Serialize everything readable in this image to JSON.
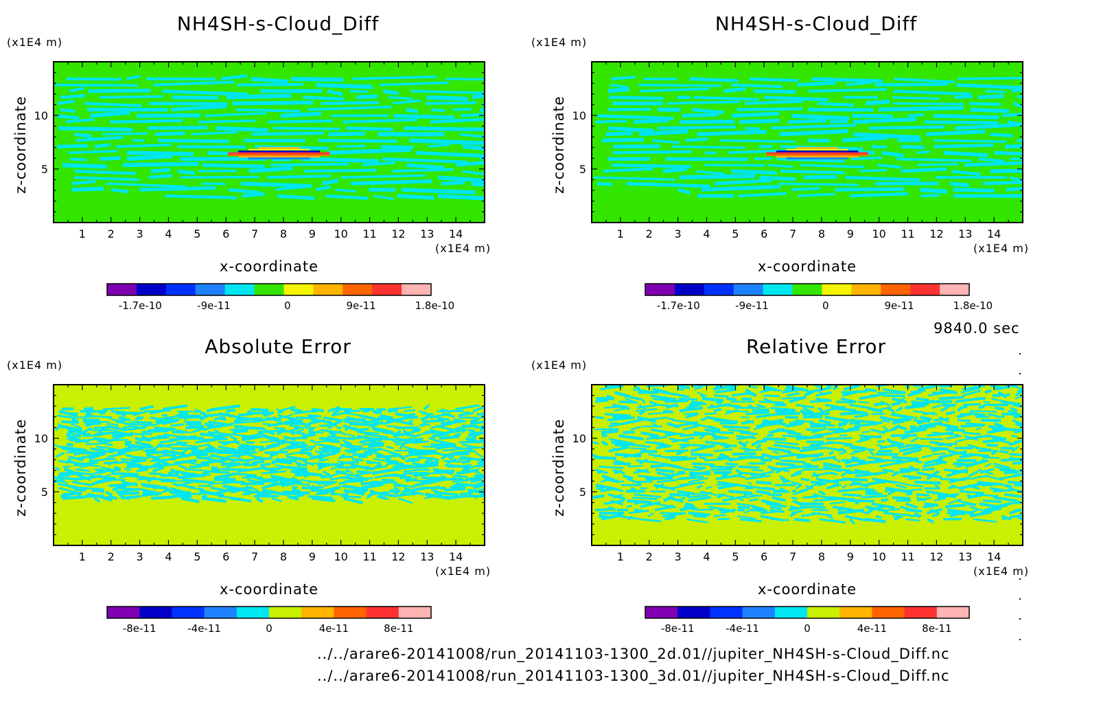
{
  "chart_data": [
    {
      "type": "heatmap",
      "title": "NH4SH-s-Cloud_Diff",
      "xlabel": "x-coordinate",
      "ylabel": "z-coordinate",
      "x_unit": "(x1E4 m)",
      "y_unit": "(x1E4 m)",
      "xlim": [
        0,
        15
      ],
      "ylim": [
        0,
        15
      ],
      "xticks": [
        1,
        2,
        3,
        4,
        5,
        6,
        7,
        8,
        9,
        10,
        11,
        12,
        13,
        14
      ],
      "yticks": [
        5,
        10
      ],
      "colorbar": {
        "colors": [
          "#7f00b2",
          "#0000c8",
          "#0032ff",
          "#1e82ff",
          "#00e6f0",
          "#32e600",
          "#f5f500",
          "#ffb400",
          "#ff6400",
          "#ff3232",
          "#ffb4b4"
        ],
        "labels": [
          "-1.7e-10",
          "-9e-11",
          "0",
          "9e-11",
          "1.8e-10"
        ]
      },
      "background": "#32e600",
      "pattern": "#00e6f0",
      "feature": {
        "x_range": [
          5.9,
          9.8
        ],
        "z_center": 6.4,
        "colors": [
          "#ffb400",
          "#f5f500",
          "#0000c8",
          "#ff3232",
          "#ff6400",
          "#ffb400",
          "#1e82ff"
        ]
      }
    },
    {
      "type": "heatmap",
      "title": "NH4SH-s-Cloud_Diff",
      "xlabel": "x-coordinate",
      "ylabel": "z-coordinate",
      "x_unit": "(x1E4 m)",
      "y_unit": "(x1E4 m)",
      "xlim": [
        0,
        15
      ],
      "ylim": [
        0,
        15
      ],
      "xticks": [
        1,
        2,
        3,
        4,
        5,
        6,
        7,
        8,
        9,
        10,
        11,
        12,
        13,
        14
      ],
      "yticks": [
        5,
        10
      ],
      "colorbar": {
        "colors": [
          "#7f00b2",
          "#0000c8",
          "#0032ff",
          "#1e82ff",
          "#00e6f0",
          "#32e600",
          "#f5f500",
          "#ffb400",
          "#ff6400",
          "#ff3232",
          "#ffb4b4"
        ],
        "labels": [
          "-1.7e-10",
          "-9e-11",
          "0",
          "9e-11",
          "1.8e-10"
        ]
      },
      "background": "#32e600",
      "pattern": "#00e6f0",
      "feature": {
        "x_range": [
          5.9,
          9.8
        ],
        "z_center": 6.4,
        "colors": [
          "#ffb400",
          "#f5f500",
          "#0000c8",
          "#ff3232",
          "#ff6400",
          "#ffb400",
          "#1e82ff"
        ]
      }
    },
    {
      "type": "heatmap",
      "title": "Absolute Error",
      "xlabel": "x-coordinate",
      "ylabel": "z-coordinate",
      "x_unit": "(x1E4 m)",
      "y_unit": "(x1E4 m)",
      "xlim": [
        0,
        15
      ],
      "ylim": [
        0,
        15
      ],
      "xticks": [
        1,
        2,
        3,
        4,
        5,
        6,
        7,
        8,
        9,
        10,
        11,
        12,
        13,
        14
      ],
      "yticks": [
        5,
        10
      ],
      "colorbar": {
        "colors": [
          "#7f00b2",
          "#0000c8",
          "#0032ff",
          "#1e82ff",
          "#00e6f0",
          "#c8f000",
          "#ffb400",
          "#ff6400",
          "#ff3232",
          "#ffb4b4"
        ],
        "labels": [
          "-8e-11",
          "-4e-11",
          "0",
          "4e-11",
          "8e-11"
        ]
      },
      "background": "#c8f000",
      "pattern": "#00e6f0"
    },
    {
      "type": "heatmap",
      "title": "Relative Error",
      "xlabel": "x-coordinate",
      "ylabel": "z-coordinate",
      "x_unit": "(x1E4 m)",
      "y_unit": "(x1E4 m)",
      "xlim": [
        0,
        15
      ],
      "ylim": [
        0,
        15
      ],
      "xticks": [
        1,
        2,
        3,
        4,
        5,
        6,
        7,
        8,
        9,
        10,
        11,
        12,
        13,
        14
      ],
      "yticks": [
        5,
        10
      ],
      "colorbar": {
        "colors": [
          "#7f00b2",
          "#0000c8",
          "#0032ff",
          "#1e82ff",
          "#00e6f0",
          "#c8f000",
          "#ffb400",
          "#ff6400",
          "#ff3232",
          "#ffb4b4"
        ],
        "labels": [
          "-8e-11",
          "-4e-11",
          "0",
          "4e-11",
          "8e-11"
        ]
      },
      "background": "#c8f000",
      "pattern": "#00e6f0"
    }
  ],
  "time_label": "9840.0 sec",
  "footer": {
    "line1": "../../arare6-20141008/run_20141103-1300_2d.01//jupiter_NH4SH-s-Cloud_Diff.nc",
    "line2": "../../arare6-20141008/run_20141103-1300_3d.01//jupiter_NH4SH-s-Cloud_Diff.nc"
  }
}
